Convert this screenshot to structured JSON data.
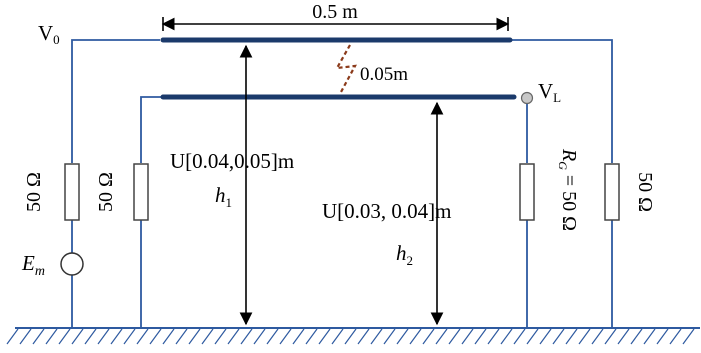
{
  "labels": {
    "v0_main": "V",
    "v0_sub": "0",
    "vl_main": "V",
    "vl_sub": "L",
    "length": "0.5 m",
    "spacing": "0.05m",
    "h1_range": "U[0.04,0.05]m",
    "h1_main": "h",
    "h1_sub": "1",
    "h2_range": "U[0.03, 0.04]m",
    "h2_main": "h",
    "h2_sub": "2",
    "res_outer_left": "50 Ω",
    "res_inner_left": "50 Ω",
    "res_inner_right": "R",
    "res_inner_right_sub": "G",
    "res_inner_right_value": " = 50 Ω",
    "res_outer_right": "50 Ω",
    "source_main": "E",
    "source_sub": "m"
  },
  "colors": {
    "wire": "#2e5aa0",
    "conductor": "#1b3a6b",
    "spacing_marker": "#8b3a1a",
    "text": "#000000"
  }
}
